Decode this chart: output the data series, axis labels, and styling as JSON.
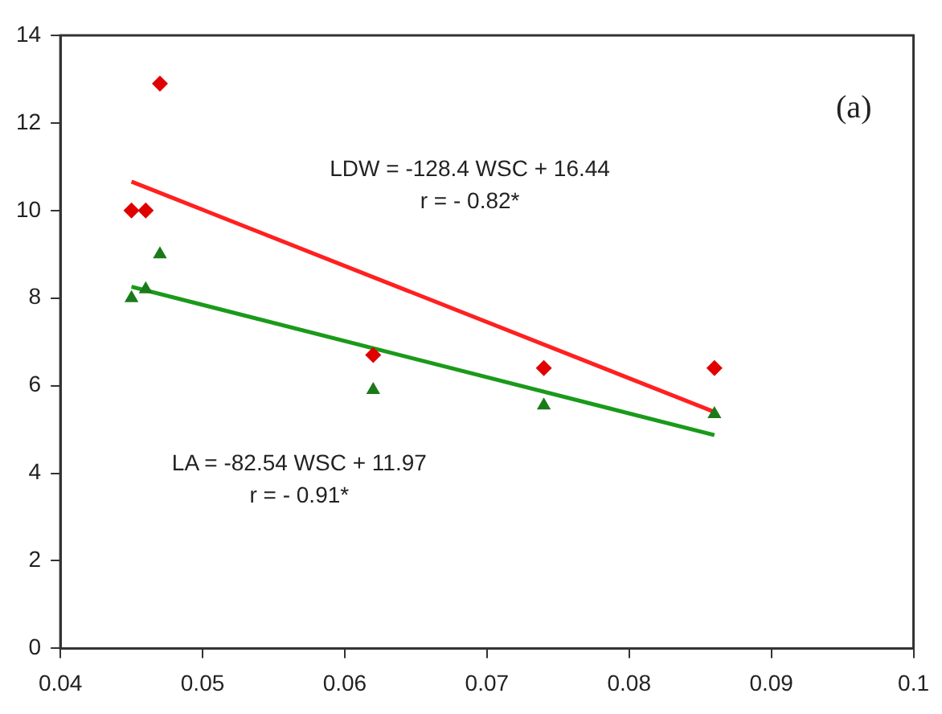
{
  "chart_data": {
    "type": "scatter",
    "xlim": [
      0.04,
      0.1
    ],
    "xticks": [
      0.04,
      0.05,
      0.06,
      0.07,
      0.08,
      0.09,
      0.1
    ],
    "ylim": [
      0,
      14
    ],
    "yticks": [
      0,
      2,
      4,
      6,
      8,
      10,
      12,
      14
    ],
    "grid": false,
    "legend": false,
    "series": [
      {
        "marker": "diamond",
        "color": "#e00000",
        "x": [
          0.045,
          0.046,
          0.047,
          0.062,
          0.074,
          0.086
        ],
        "values": [
          10,
          10,
          12.9,
          6.7,
          6.4,
          6.4
        ]
      },
      {
        "marker": "triangle",
        "color": "#1a7a1a",
        "x": [
          0.045,
          0.046,
          0.047,
          0.062,
          0.074,
          0.086
        ],
        "values": [
          8,
          8.2,
          9,
          5.9,
          5.55,
          5.35
        ]
      },
      {
        "type": "line",
        "marker": "none",
        "color": "#ff2020",
        "x": [
          0.045,
          0.086
        ],
        "values": [
          10.66,
          5.4
        ]
      },
      {
        "type": "line",
        "marker": "none",
        "color": "#1a9a1a",
        "x": [
          0.045,
          0.086
        ],
        "values": [
          8.26,
          4.87
        ]
      }
    ],
    "annotations": [
      "LDW = -128.4 WSC + 16.44\nr = - 0.82*",
      "LA = -82.54 WSC + 11.97\nr = - 0.91*",
      "(a)"
    ]
  }
}
